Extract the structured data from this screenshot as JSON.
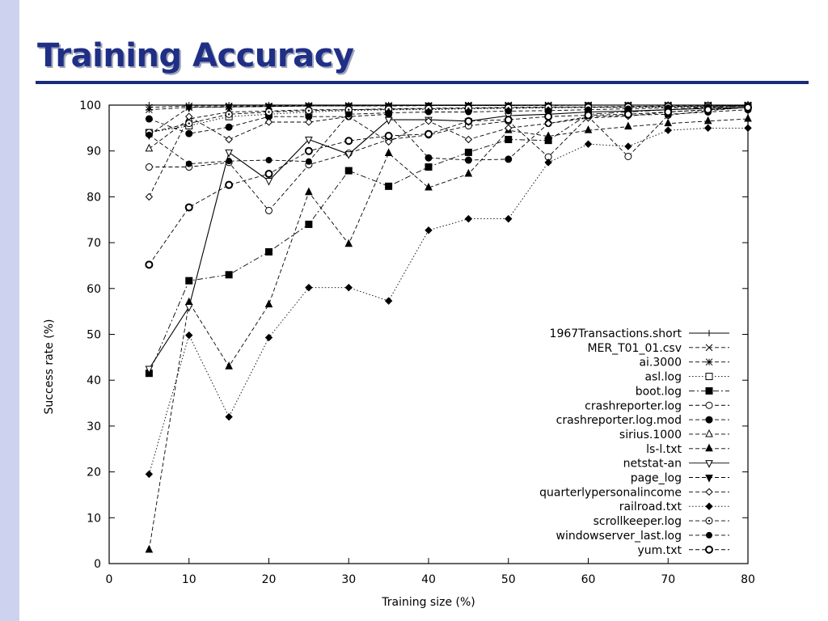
{
  "slide": {
    "title": "Training Accuracy"
  },
  "chart_data": {
    "type": "line",
    "title": "",
    "xlabel": "Training size (%)",
    "ylabel": "Success rate (%)",
    "xlim": [
      0,
      80
    ],
    "ylim": [
      0,
      100
    ],
    "xticks": [
      0,
      10,
      20,
      30,
      40,
      50,
      60,
      70,
      80
    ],
    "yticks": [
      0,
      10,
      20,
      30,
      40,
      50,
      60,
      70,
      80,
      90,
      100
    ],
    "legend_position": "lower-right",
    "grid": false,
    "x": [
      5,
      10,
      15,
      20,
      25,
      30,
      35,
      40,
      45,
      50,
      55,
      60,
      65,
      70,
      75,
      80
    ],
    "series": [
      {
        "name": "1967Transactions.short",
        "marker": "plus",
        "dash": "solid",
        "values": [
          100,
          100,
          100,
          100,
          100,
          100,
          100,
          100,
          100,
          100,
          100,
          100,
          100,
          100,
          100,
          100
        ]
      },
      {
        "name": "MER_T01_01.csv",
        "marker": "x",
        "dash": "dashed",
        "values": [
          99.5,
          99.8,
          99.8,
          99.8,
          99.9,
          99.9,
          99.9,
          99.9,
          100,
          100,
          100,
          100,
          100,
          100,
          100,
          100
        ]
      },
      {
        "name": "ai.3000",
        "marker": "star",
        "dash": "dashed",
        "values": [
          99,
          99.5,
          99.6,
          99.7,
          99.8,
          99.8,
          99.9,
          99.9,
          99.9,
          99.9,
          100,
          100,
          100,
          100,
          100,
          100
        ]
      },
      {
        "name": "asl.log",
        "marker": "square-open",
        "dash": "dotted",
        "values": [
          94,
          95.5,
          97.5,
          98,
          98.5,
          98.8,
          99,
          99,
          99.2,
          99.3,
          99.4,
          99.5,
          99.5,
          99.6,
          99.7,
          99.8
        ]
      },
      {
        "name": "boot.log",
        "marker": "square-filled",
        "dash": "dashdot",
        "values": [
          41.5,
          61.7,
          63,
          68,
          74,
          85.7,
          82.3,
          86.5,
          89.7,
          92.5,
          92.3,
          98,
          98.5,
          99,
          99.5,
          99.8
        ]
      },
      {
        "name": "crashreporter.log",
        "marker": "circle-open",
        "dash": "dashed",
        "values": [
          86.5,
          86.5,
          87.5,
          77,
          87,
          89.5,
          92.5,
          93.5,
          95.5,
          96.5,
          88.7,
          97.5,
          88.8,
          97.8,
          98.8,
          99.5
        ]
      },
      {
        "name": "crashreporter.log.mod",
        "marker": "circle-filled",
        "dash": "dashed",
        "values": [
          97,
          93.8,
          95.2,
          97.5,
          97.5,
          97.5,
          98,
          88.5,
          88,
          88.2,
          96,
          97.5,
          97.8,
          98,
          98.5,
          99
        ]
      },
      {
        "name": "sirius.1000",
        "marker": "triangle-up-open",
        "dash": "dashed",
        "values": [
          90.5,
          97,
          98.5,
          98.7,
          99,
          99,
          99.2,
          99.3,
          99.4,
          99.5,
          99.6,
          99.6,
          99.7,
          99.8,
          99.8,
          99.9
        ]
      },
      {
        "name": "ls-l.txt",
        "marker": "triangle-up-filled",
        "dash": "dashed",
        "values": [
          3,
          57,
          43,
          56.5,
          81,
          69.7,
          89.5,
          82,
          85,
          94.5,
          93.2,
          94.5,
          95.3,
          96,
          96.5,
          97
        ]
      },
      {
        "name": "netstat-an",
        "marker": "triangle-down-open",
        "dash": "solid",
        "values": [
          42.5,
          56,
          89.7,
          83.5,
          92.5,
          89.3,
          96.8,
          96.8,
          96.5,
          97.7,
          98,
          98.5,
          98.7,
          99,
          99.3,
          99.5
        ]
      },
      {
        "name": "page_log",
        "marker": "triangle-down-filled",
        "dash": "dashed",
        "values": [
          93.5,
          99.5,
          99.6,
          99.7,
          99.8,
          99.8,
          99.8,
          99.9,
          99.9,
          99.9,
          99.9,
          100,
          100,
          100,
          100,
          100
        ]
      },
      {
        "name": "quarterlypersonalincome",
        "marker": "diamond-open",
        "dash": "dashed",
        "values": [
          80,
          97.5,
          92.5,
          96.3,
          96.3,
          97.5,
          92,
          96.5,
          92.5,
          95,
          96,
          97.2,
          97.6,
          98.5,
          99,
          99.5
        ]
      },
      {
        "name": "railroad.txt",
        "marker": "diamond-filled",
        "dash": "dotted",
        "values": [
          19.5,
          49.8,
          32,
          49.3,
          60.2,
          60.2,
          57.3,
          72.7,
          75.2,
          75.2,
          87.5,
          91.5,
          91,
          94.5,
          95,
          95
        ]
      },
      {
        "name": "scrollkeeper.log",
        "marker": "circle-dot",
        "dash": "dashed",
        "values": [
          94,
          96,
          98,
          98.5,
          98.8,
          99,
          99.1,
          99.2,
          99.3,
          99.4,
          99.5,
          99.5,
          99.6,
          99.7,
          99.8,
          99.9
        ]
      },
      {
        "name": "windowserver_last.log",
        "marker": "circle-filled-small",
        "dash": "dashed",
        "values": [
          93.5,
          87.2,
          87.8,
          88,
          87.7,
          98,
          98.3,
          98.5,
          98.5,
          98.7,
          98.8,
          99,
          99.2,
          99.4,
          99.6,
          99.8
        ]
      },
      {
        "name": "yum.txt",
        "marker": "circle-bold",
        "dash": "dashed",
        "values": [
          65.2,
          77.7,
          82.6,
          85,
          90,
          92.2,
          93.3,
          93.7,
          96.5,
          96.8,
          97.5,
          97.8,
          98,
          98.5,
          99,
          99.5
        ]
      }
    ]
  }
}
